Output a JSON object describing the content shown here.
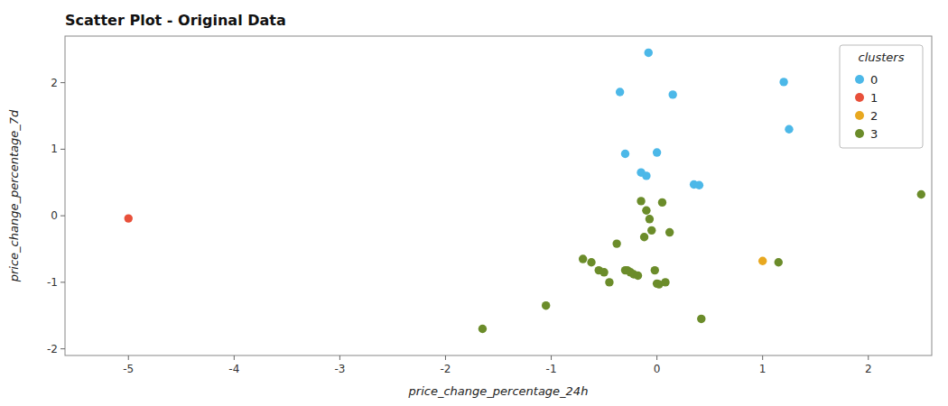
{
  "chart_data": {
    "type": "scatter",
    "title": "Scatter Plot - Original Data",
    "xlabel": "price_change_percentage_24h",
    "ylabel": "price_change_percentage_7d",
    "xlim": [
      -5.6,
      2.6
    ],
    "ylim": [
      -2.1,
      2.7
    ],
    "xticks": [
      -5,
      -4,
      -3,
      -2,
      -1,
      0,
      1,
      2
    ],
    "yticks": [
      -2,
      -1,
      0,
      1,
      2
    ],
    "grid": false,
    "legend": "upper right",
    "legend_title": "clusters",
    "series": [
      {
        "name": "0",
        "color": "#4cb8e8",
        "x": [
          -0.35,
          -0.3,
          -0.15,
          -0.1,
          -0.08,
          0.0,
          0.15,
          0.35,
          0.4,
          1.2,
          1.25
        ],
        "values": [
          1.86,
          0.93,
          0.65,
          0.6,
          2.45,
          0.95,
          1.82,
          0.47,
          0.46,
          2.01,
          1.3
        ]
      },
      {
        "name": "1",
        "color": "#e8503a",
        "x": [
          -5.0
        ],
        "values": [
          -0.04
        ]
      },
      {
        "name": "2",
        "color": "#e8a820",
        "x": [
          1.0
        ],
        "values": [
          -0.68
        ]
      },
      {
        "name": "3",
        "color": "#6b8c2a",
        "x": [
          -1.65,
          -1.05,
          -0.7,
          -0.62,
          -0.55,
          -0.5,
          -0.45,
          -0.38,
          -0.3,
          -0.28,
          -0.25,
          -0.22,
          -0.18,
          -0.15,
          -0.12,
          -0.1,
          -0.07,
          -0.05,
          -0.02,
          0.0,
          0.02,
          0.05,
          0.08,
          0.12,
          0.42,
          1.15,
          2.5
        ],
        "values": [
          -1.7,
          -1.35,
          -0.65,
          -0.7,
          -0.82,
          -0.85,
          -1.0,
          -0.42,
          -0.82,
          -0.82,
          -0.85,
          -0.88,
          -0.9,
          0.22,
          -0.32,
          0.08,
          -0.05,
          -0.22,
          -0.82,
          -1.02,
          -1.03,
          0.2,
          -1.0,
          -0.25,
          -1.55,
          -0.7,
          0.32
        ]
      }
    ]
  }
}
